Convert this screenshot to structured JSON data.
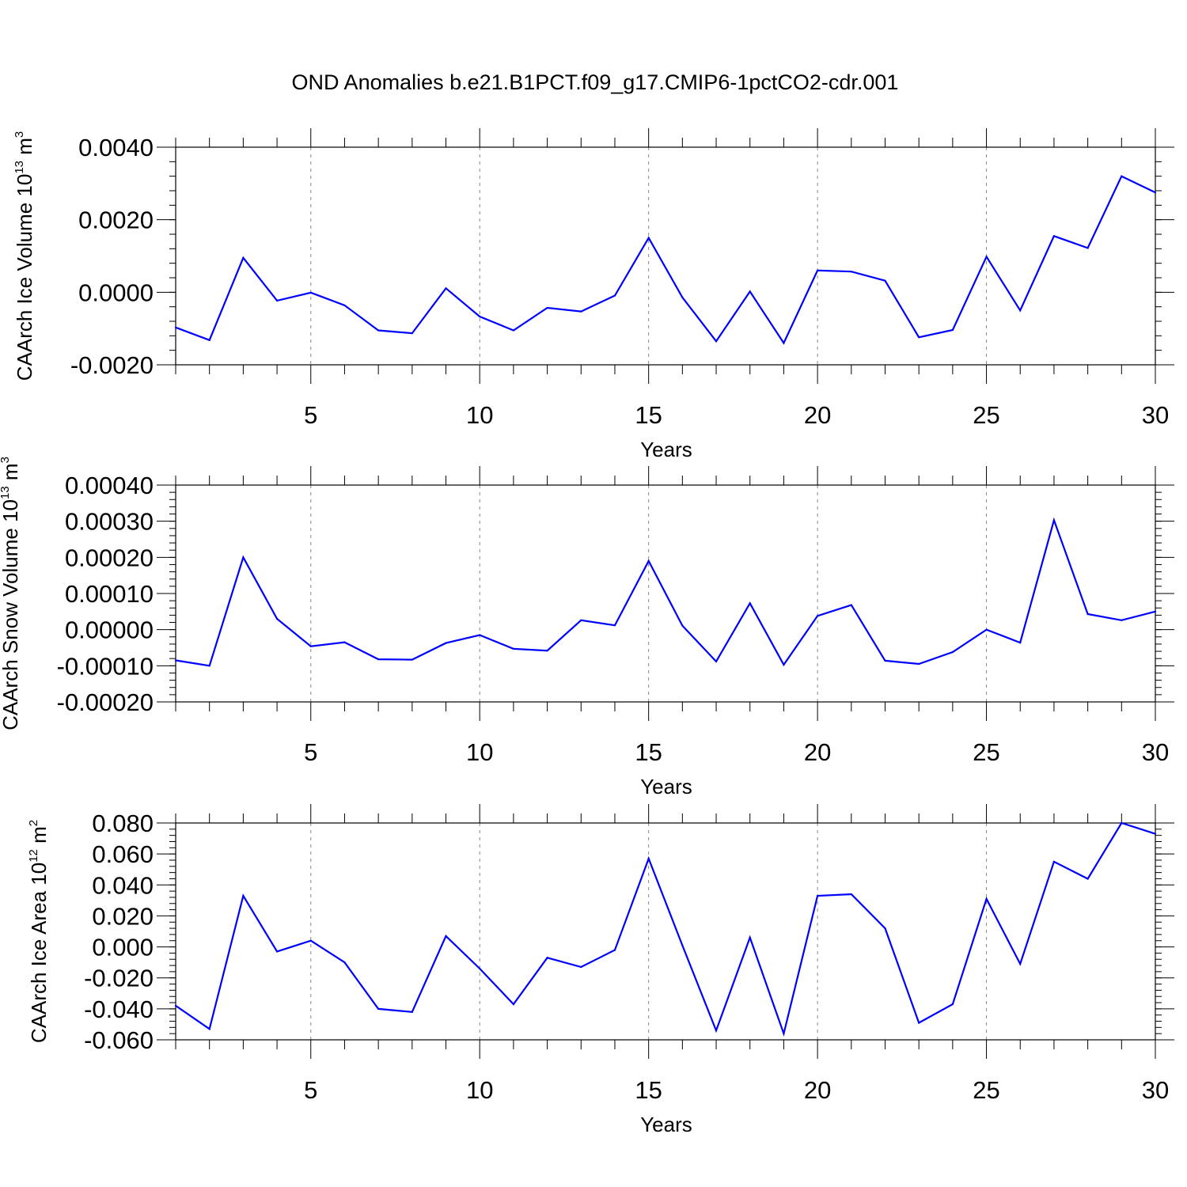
{
  "figure_title": "OND Anomalies b.e21.B1PCT.f09_g17.CMIP6-1pctCO2-cdr.001",
  "chart_data": [
    {
      "type": "line",
      "title": "OND Anomalies b.e21.B1PCT.f09_g17.CMIP6-1pctCO2-cdr.001",
      "xlabel": "Years",
      "ylabel_text": "CAArch Ice Volume 10",
      "ylabel_exponent": "13",
      "ylabel_unit": " m",
      "ylabel_unit_exponent": "3",
      "xlim": [
        1,
        30
      ],
      "ylim": [
        -0.002,
        0.004
      ],
      "x_ticks": [
        5,
        10,
        15,
        20,
        25,
        30
      ],
      "y_ticks": [
        -0.002,
        0.0,
        0.002,
        0.004
      ],
      "y_tick_labels": [
        "-0.0020",
        "0.0000",
        "0.0020",
        "0.0040"
      ],
      "y_minor_step": 0.0004,
      "line_color": "#0000ff",
      "series": [
        {
          "name": "CAArch Ice Volume",
          "x": [
            1,
            2,
            3,
            4,
            5,
            6,
            7,
            8,
            9,
            10,
            11,
            12,
            13,
            14,
            15,
            16,
            17,
            18,
            19,
            20,
            21,
            22,
            23,
            24,
            25,
            26,
            27,
            28,
            29,
            30
          ],
          "values": [
            -0.00097,
            -0.00132,
            0.00095,
            -0.00023,
            -1e-05,
            -0.00036,
            -0.00105,
            -0.00113,
            0.00011,
            -0.00067,
            -0.00105,
            -0.00043,
            -0.00053,
            -9e-05,
            0.0015,
            -0.00014,
            -0.00135,
            2e-05,
            -0.0014,
            0.0006,
            0.00057,
            0.00032,
            -0.00124,
            -0.00104,
            0.00098,
            -0.0005,
            0.00155,
            0.00122,
            0.0032,
            0.00275
          ]
        }
      ]
    },
    {
      "type": "line",
      "xlabel": "Years",
      "ylabel_text": "CAArch Snow Volume 10",
      "ylabel_exponent": "13",
      "ylabel_unit": " m",
      "ylabel_unit_exponent": "3",
      "xlim": [
        1,
        30
      ],
      "ylim": [
        -0.0002,
        0.0004
      ],
      "x_ticks": [
        5,
        10,
        15,
        20,
        25,
        30
      ],
      "y_ticks": [
        -0.0002,
        -0.0001,
        0.0,
        0.0001,
        0.0002,
        0.0003,
        0.0004
      ],
      "y_tick_labels": [
        "-0.00020",
        "-0.00010",
        "0.00000",
        "0.00010",
        "0.00020",
        "0.00030",
        "0.00040"
      ],
      "y_minor_step": 2e-05,
      "line_color": "#0000ff",
      "series": [
        {
          "name": "CAArch Snow Volume",
          "x": [
            1,
            2,
            3,
            4,
            5,
            6,
            7,
            8,
            9,
            10,
            11,
            12,
            13,
            14,
            15,
            16,
            17,
            18,
            19,
            20,
            21,
            22,
            23,
            24,
            25,
            26,
            27,
            28,
            29,
            30
          ],
          "values": [
            -8.5e-05,
            -0.0001,
            0.0002,
            3e-05,
            -4.6e-05,
            -3.5e-05,
            -8.2e-05,
            -8.3e-05,
            -3.7e-05,
            -1.5e-05,
            -5.3e-05,
            -5.8e-05,
            2.6e-05,
            1.2e-05,
            0.00019,
            1.1e-05,
            -8.8e-05,
            7.3e-05,
            -9.7e-05,
            3.8e-05,
            6.8e-05,
            -8.6e-05,
            -9.5e-05,
            -6.2e-05,
            0.0,
            -3.6e-05,
            0.000303,
            4.3e-05,
            2.6e-05,
            5e-05
          ]
        }
      ]
    },
    {
      "type": "line",
      "xlabel": "Years",
      "ylabel_text": "CAArch Ice Area 10",
      "ylabel_exponent": "12",
      "ylabel_unit": " m",
      "ylabel_unit_exponent": "2",
      "xlim": [
        1,
        30
      ],
      "ylim": [
        -0.06,
        0.08
      ],
      "x_ticks": [
        5,
        10,
        15,
        20,
        25,
        30
      ],
      "y_ticks": [
        -0.06,
        -0.04,
        -0.02,
        0.0,
        0.02,
        0.04,
        0.06,
        0.08
      ],
      "y_tick_labels": [
        "-0.060",
        "-0.040",
        "-0.020",
        "0.000",
        "0.020",
        "0.040",
        "0.060",
        "0.080"
      ],
      "y_minor_step": 0.004,
      "line_color": "#0000ff",
      "series": [
        {
          "name": "CAArch Ice Area",
          "x": [
            1,
            2,
            3,
            4,
            5,
            6,
            7,
            8,
            9,
            10,
            11,
            12,
            13,
            14,
            15,
            16,
            17,
            18,
            19,
            20,
            21,
            22,
            23,
            24,
            25,
            26,
            27,
            28,
            29,
            30
          ],
          "values": [
            -0.038,
            -0.053,
            0.033,
            -0.003,
            0.004,
            -0.01,
            -0.04,
            -0.042,
            0.007,
            -0.014,
            -0.037,
            -0.007,
            -0.013,
            -0.002,
            0.057,
            0.001,
            -0.054,
            0.006,
            -0.056,
            0.033,
            0.034,
            0.012,
            -0.049,
            -0.037,
            0.031,
            -0.011,
            0.055,
            0.044,
            0.08,
            0.073
          ]
        }
      ]
    }
  ]
}
